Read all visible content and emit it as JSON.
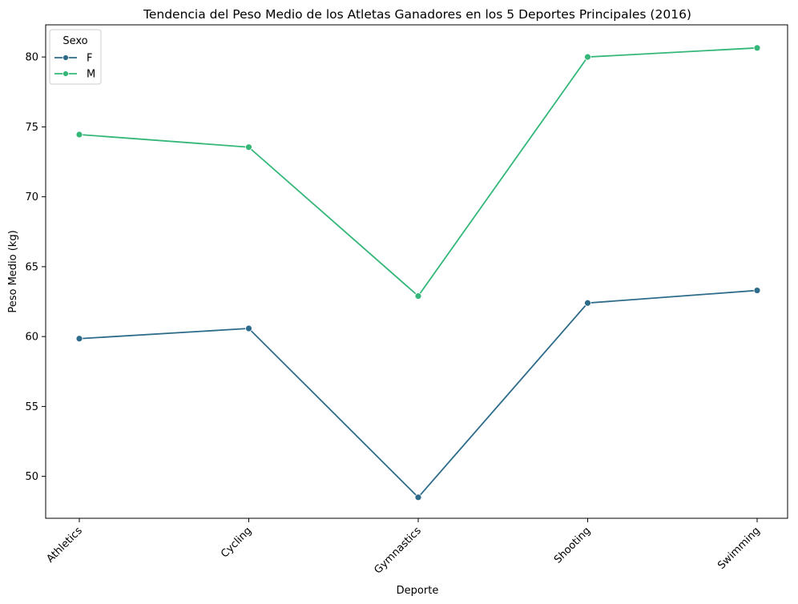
{
  "chart_data": {
    "type": "line",
    "title": "Tendencia del Peso Medio de los Atletas Ganadores en los 5 Deportes Principales (2016)",
    "xlabel": "Deporte",
    "ylabel": "Peso Medio (kg)",
    "categories": [
      "Athletics",
      "Cycling",
      "Gymnastics",
      "Shooting",
      "Swimming"
    ],
    "ylim": [
      47,
      82.3
    ],
    "yticks": [
      50,
      55,
      60,
      65,
      70,
      75,
      80
    ],
    "grid": false,
    "legend": {
      "title": "Sexo",
      "placement": "top-left"
    },
    "series": [
      {
        "name": "F",
        "color": "#2d6b8b",
        "values": [
          59.85,
          60.58,
          48.5,
          62.4,
          63.3
        ]
      },
      {
        "name": "M",
        "color": "#35b779",
        "values": [
          74.45,
          73.55,
          62.9,
          80.0,
          80.65
        ]
      }
    ]
  }
}
